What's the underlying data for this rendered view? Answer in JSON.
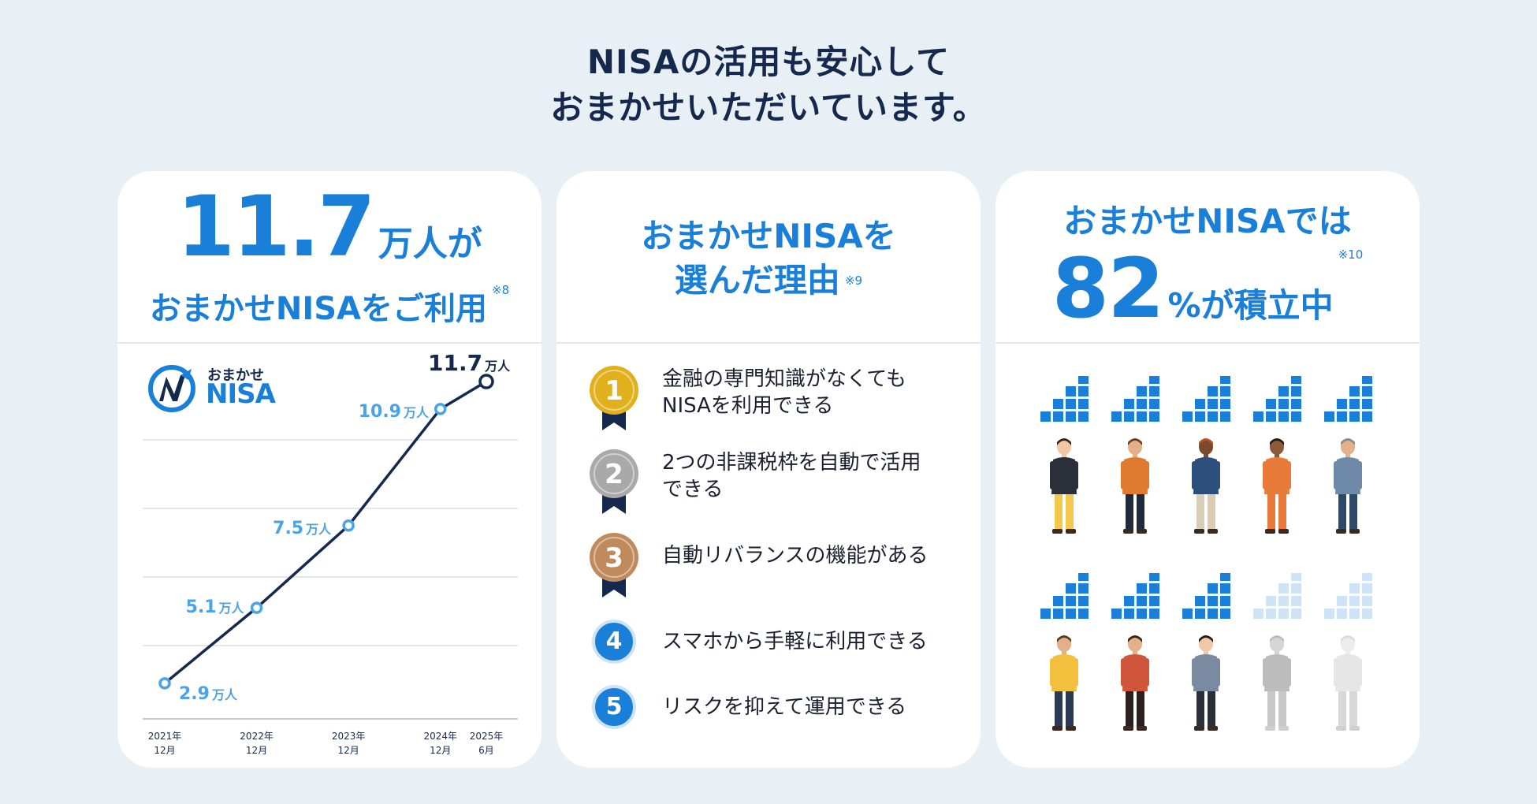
{
  "headline": {
    "line1": "NISAの活用も安心して",
    "line2": "おまかせいただいています。"
  },
  "card_users": {
    "big_value": "11.7",
    "big_unit": "万人が",
    "subtitle": "おまかせNISAをご利用",
    "note": "※8",
    "logo_sub": "おまかせ",
    "logo_main": "NISA",
    "chart_data": {
      "type": "line",
      "x": [
        "2021年 12月",
        "2022年 12月",
        "2023年 12月",
        "2024年 12月",
        "2025年 6月"
      ],
      "x_labels": [
        [
          "2021年",
          "12月"
        ],
        [
          "2022年",
          "12月"
        ],
        [
          "2023年",
          "12月"
        ],
        [
          "2024年",
          "12月"
        ],
        [
          "2025年",
          "6月"
        ]
      ],
      "x_months": [
        0,
        12,
        24,
        36,
        42
      ],
      "values": [
        2.9,
        5.1,
        7.5,
        10.9,
        11.7
      ],
      "value_labels": [
        "2.9",
        "5.1",
        "7.5",
        "10.9",
        "11.7"
      ],
      "unit": "万人",
      "ylim": [
        2,
        12
      ],
      "grid": true,
      "line_color": "#15294e",
      "label_color": "#4aa3e6",
      "last_label_color": "#15294e"
    }
  },
  "card_reasons": {
    "title_line1": "おまかせNISAを",
    "title_line2": "選んだ理由",
    "note": "※9",
    "items": [
      {
        "rank": "1",
        "medal": "gold-medal-icon",
        "text": [
          "金融の専門知識がなくても",
          "NISAを利用できる"
        ]
      },
      {
        "rank": "2",
        "medal": "silver-medal-icon",
        "text": [
          "2つの非課税枠を自動で活用",
          "できる"
        ]
      },
      {
        "rank": "3",
        "medal": "bronze-medal-icon",
        "text": [
          "自動リバランスの機能がある"
        ]
      },
      {
        "rank": "4",
        "medal": "number-circle-icon",
        "text": [
          "スマホから手軽に利用できる"
        ]
      },
      {
        "rank": "5",
        "medal": "number-circle-icon",
        "text": [
          "リスクを抑えて運用できる"
        ]
      }
    ],
    "colors": {
      "gold": "#e0b11c",
      "silver": "#a9a9a9",
      "bronze": "#c08a5c",
      "ribbon": "#15294e",
      "blue": "#1a7fd8"
    }
  },
  "card_monthly": {
    "line1": "おまかせNISAでは",
    "big_value": "82",
    "big_unit": "%が積立中",
    "note": "※10",
    "people": [
      {
        "icon": "woman-yellow-skirt-icon",
        "active": true,
        "shirt": "#2a2f3a",
        "pants": "#f2c94c",
        "skin": "#f1c7a5",
        "hair": "#3a2415"
      },
      {
        "icon": "man-orange-sweater-icon",
        "active": true,
        "shirt": "#e07a2e",
        "pants": "#1f2a3d",
        "skin": "#e3b08a",
        "hair": "#6b3e20"
      },
      {
        "icon": "man-cap-hoodie-icon",
        "active": true,
        "shirt": "#2c4f7c",
        "pants": "#d9cdb5",
        "skin": "#7a4a2a",
        "hair": "#b8552a"
      },
      {
        "icon": "woman-striped-dress-icon",
        "active": true,
        "shirt": "#e87b3a",
        "pants": "#e87b3a",
        "skin": "#8a5a3a",
        "hair": "#2a1a10"
      },
      {
        "icon": "older-man-icon",
        "active": true,
        "shirt": "#6e8aa8",
        "pants": "#2f4a68",
        "skin": "#e3b08a",
        "hair": "#8a8a8a"
      },
      {
        "icon": "man-yellow-shirt-icon",
        "active": true,
        "shirt": "#f2c03c",
        "pants": "#2a3a55",
        "skin": "#e3b08a",
        "hair": "#5a3a20"
      },
      {
        "icon": "man-plaid-shirt-icon",
        "active": true,
        "shirt": "#d0553a",
        "pants": "#2a2020",
        "skin": "#e3b08a",
        "hair": "#3a2415"
      },
      {
        "icon": "woman-jacket-icon",
        "active": true,
        "shirt": "#7a8aa0",
        "pants": "#2a2f3a",
        "skin": "#f1c7a5",
        "hair": "#2a1a10"
      },
      {
        "icon": "man-suit-icon",
        "active": false,
        "shirt": "#bcbcbc",
        "pants": "#c8c8c8",
        "skin": "#d5d5d5",
        "hair": "#bdbdbd"
      },
      {
        "icon": "woman-faded-icon",
        "active": false,
        "shirt": "#e6e6e6",
        "pants": "#d8d8d8",
        "skin": "#ececec",
        "hair": "#dcdcdc"
      }
    ],
    "colors": {
      "active_block": "#1a7fd8",
      "inactive_block": "#cfe3f7"
    }
  }
}
